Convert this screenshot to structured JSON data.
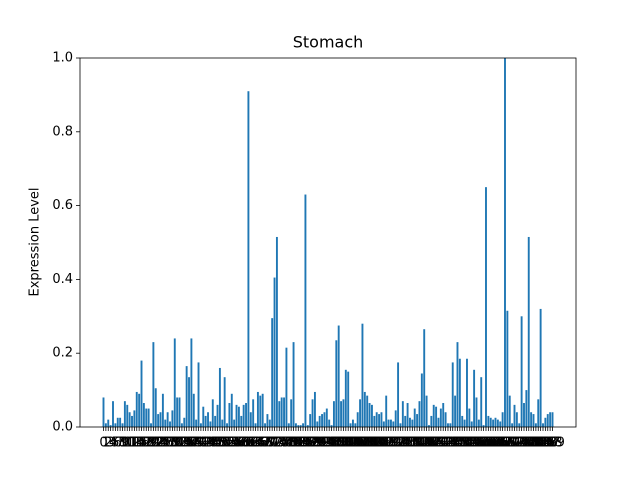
{
  "chart_data": {
    "type": "bar",
    "title": "Stomach",
    "y_label": "Expression Level",
    "color": "#1f77b4",
    "categories": [
      0,
      1,
      2,
      3,
      4,
      5,
      6,
      7,
      8,
      9,
      10,
      11,
      12,
      13,
      14,
      15,
      16,
      17,
      18,
      19,
      20,
      21,
      22,
      23,
      24,
      25,
      26,
      27,
      28,
      29,
      30,
      31,
      32,
      33,
      34,
      35,
      36,
      37,
      38,
      39,
      40,
      41,
      42,
      43,
      44,
      45,
      46,
      47,
      48,
      49,
      50,
      51,
      52,
      53,
      54,
      55,
      56,
      57,
      58,
      59,
      60,
      61,
      62,
      63,
      64,
      65,
      66,
      67,
      68,
      69,
      70,
      71,
      72,
      73,
      74,
      75,
      76,
      77,
      78,
      79,
      80,
      81,
      82,
      83,
      84,
      85,
      86,
      87,
      88,
      89,
      90,
      91,
      92,
      93,
      94,
      95,
      96,
      97,
      98,
      99,
      100,
      101,
      102,
      103,
      104,
      105,
      106,
      107,
      108,
      109,
      110,
      111,
      112,
      113,
      114,
      115,
      116,
      117,
      118,
      119,
      120,
      121,
      122,
      123,
      124,
      125,
      126,
      127,
      128,
      129,
      130,
      131,
      132,
      133,
      134,
      135,
      136,
      137,
      138,
      139,
      140,
      141,
      142,
      143,
      144,
      145,
      146,
      147,
      148,
      149,
      150,
      151,
      152,
      153,
      154,
      155,
      156,
      157,
      158,
      159,
      160,
      161,
      162,
      163,
      164,
      165,
      166,
      167,
      168,
      169,
      170,
      171,
      172,
      173,
      174,
      175,
      176,
      177,
      178,
      179,
      180,
      181,
      182,
      183,
      184,
      185,
      186,
      187,
      188,
      189
    ],
    "values": [
      0.08,
      0.01,
      0.02,
      0.005,
      0.07,
      0.01,
      0.025,
      0.025,
      0.01,
      0.07,
      0.06,
      0.04,
      0.03,
      0.045,
      0.095,
      0.09,
      0.18,
      0.065,
      0.05,
      0.05,
      0.01,
      0.23,
      0.105,
      0.035,
      0.04,
      0.09,
      0.02,
      0.04,
      0.015,
      0.045,
      0.24,
      0.08,
      0.08,
      0.01,
      0.025,
      0.165,
      0.135,
      0.24,
      0.09,
      0.02,
      0.175,
      0.01,
      0.055,
      0.03,
      0.04,
      0.015,
      0.075,
      0.03,
      0.06,
      0.16,
      0.02,
      0.135,
      0.01,
      0.065,
      0.09,
      0.02,
      0.06,
      0.055,
      0.03,
      0.06,
      0.065,
      0.91,
      0.04,
      0.075,
      0.01,
      0.095,
      0.085,
      0.09,
      0.01,
      0.035,
      0.02,
      0.295,
      0.405,
      0.515,
      0.07,
      0.08,
      0.08,
      0.215,
      0.01,
      0.075,
      0.23,
      0.01,
      0.005,
      0.005,
      0.01,
      0.63,
      0.005,
      0.035,
      0.075,
      0.095,
      0.015,
      0.03,
      0.035,
      0.04,
      0.05,
      0.02,
      0.005,
      0.07,
      0.235,
      0.275,
      0.07,
      0.075,
      0.155,
      0.15,
      0.01,
      0.02,
      0.01,
      0.04,
      0.075,
      0.28,
      0.095,
      0.085,
      0.065,
      0.06,
      0.03,
      0.04,
      0.035,
      0.04,
      0.015,
      0.085,
      0.02,
      0.02,
      0.015,
      0.045,
      0.175,
      0.01,
      0.07,
      0.03,
      0.065,
      0.025,
      0.02,
      0.05,
      0.035,
      0.07,
      0.145,
      0.265,
      0.085,
      0.005,
      0.03,
      0.06,
      0.055,
      0.025,
      0.05,
      0.065,
      0.04,
      0.01,
      0.01,
      0.175,
      0.085,
      0.23,
      0.185,
      0.03,
      0.02,
      0.185,
      0.05,
      0.015,
      0.155,
      0.08,
      0.02,
      0.135,
      0.005,
      0.65,
      0.03,
      0.025,
      0.02,
      0.025,
      0.02,
      0.015,
      0.04,
      1.0,
      0.315,
      0.085,
      0.01,
      0.06,
      0.04,
      0.01,
      0.3,
      0.065,
      0.1,
      0.515,
      0.04,
      0.035,
      0.01,
      0.075,
      0.32,
      0.01,
      0.025,
      0.035,
      0.04,
      0.04
    ],
    "ylim": [
      0,
      1.0
    ],
    "yticks": [
      {
        "value": 0,
        "label": "0.0"
      },
      {
        "value": 0.2,
        "label": "0.2"
      },
      {
        "value": 0.4,
        "label": "0.4"
      },
      {
        "value": 0.6,
        "label": "0.6"
      },
      {
        "value": 0.8,
        "label": "0.8"
      },
      {
        "value": 1.0,
        "label": "1.0"
      }
    ],
    "grid": false
  }
}
